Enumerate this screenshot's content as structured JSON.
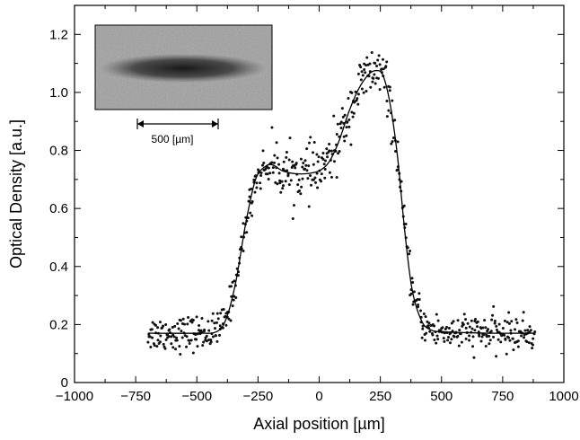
{
  "chart_data": {
    "type": "scatter",
    "title": "",
    "xlabel": "Axial position [µm]",
    "ylabel": "Optical Density [a.u.]",
    "xlim": [
      -1000,
      1000
    ],
    "ylim": [
      0,
      1.3
    ],
    "x_ticks": [
      -1000,
      -750,
      -500,
      -250,
      0,
      250,
      500,
      750,
      1000
    ],
    "x_tick_labels": [
      "−1000",
      "−750",
      "−500",
      "−250",
      "0",
      "250",
      "500",
      "750",
      "1000"
    ],
    "y_ticks": [
      0,
      0.2,
      0.4,
      0.6,
      0.8,
      1.0,
      1.2
    ],
    "y_tick_labels": [
      "0",
      "0.2",
      "0.4",
      "0.6",
      "0.8",
      "1.0",
      "1.2"
    ],
    "grid": false,
    "legend": "none",
    "inset": {
      "type": "absorption-image",
      "position": "top-left",
      "scale_bar_label": "500 [µm]",
      "scale_bar_length": 500
    },
    "series": [
      {
        "kind": "points",
        "x_range": [
          -700,
          880
        ],
        "point_count": 620,
        "noise_sd": 0.03
      },
      {
        "kind": "fit-line",
        "x": [
          -700,
          -500,
          -420,
          -380,
          -340,
          -300,
          -260,
          -220,
          -190,
          -150,
          -100,
          -50,
          0,
          40,
          80,
          120,
          160,
          200,
          230,
          260,
          290,
          320,
          350,
          380,
          420,
          460,
          500,
          600,
          700,
          800,
          880
        ],
        "y": [
          0.17,
          0.17,
          0.175,
          0.22,
          0.35,
          0.55,
          0.7,
          0.745,
          0.75,
          0.73,
          0.72,
          0.72,
          0.73,
          0.76,
          0.83,
          0.93,
          1.01,
          1.06,
          1.075,
          1.06,
          0.96,
          0.78,
          0.52,
          0.32,
          0.21,
          0.18,
          0.175,
          0.172,
          0.17,
          0.17,
          0.17
        ]
      }
    ]
  }
}
